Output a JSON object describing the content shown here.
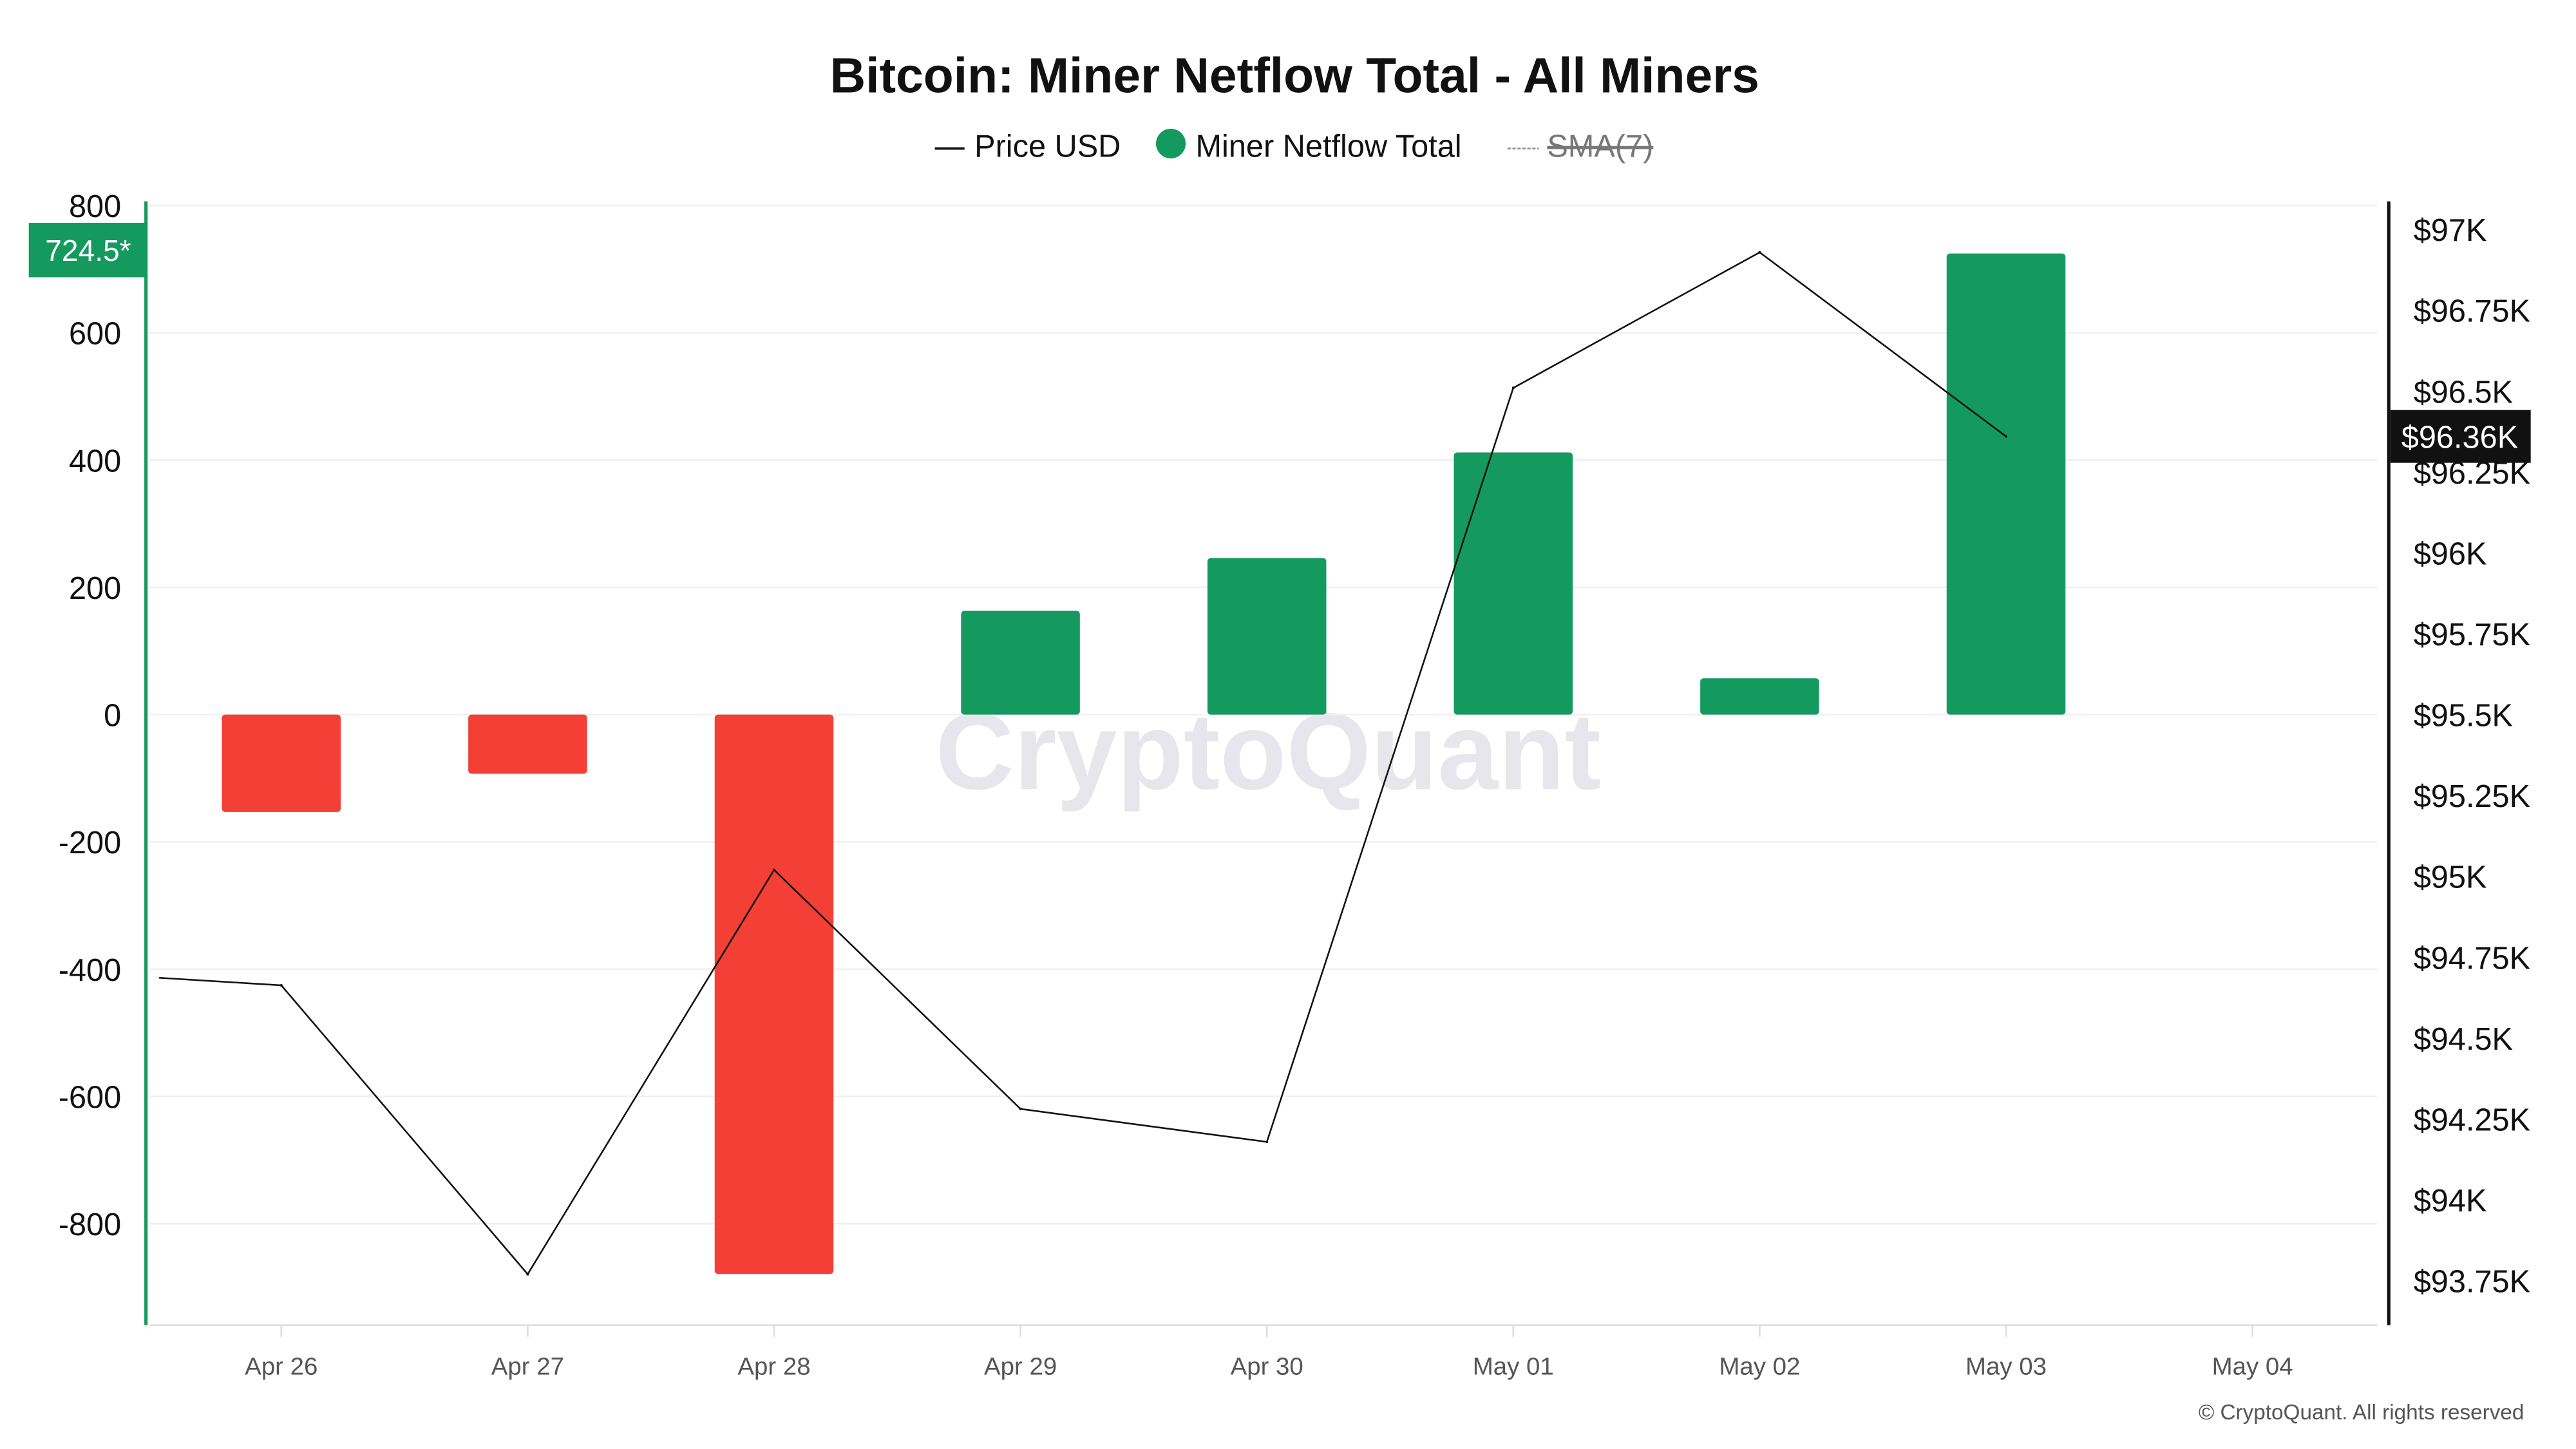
{
  "chart_data": {
    "type": "bar",
    "title": "Bitcoin: Miner Netflow Total - All Miners",
    "legend": [
      {
        "label": "Price USD",
        "marker": "line",
        "active": true
      },
      {
        "label": "Miner Netflow Total",
        "marker": "dot",
        "active": true
      },
      {
        "label": "SMA(7)",
        "marker": "dashed-line",
        "active": false
      }
    ],
    "legend_placement": "top-center",
    "categories": [
      "Apr 26",
      "Apr 27",
      "Apr 28",
      "Apr 29",
      "Apr 30",
      "May 01",
      "May 02",
      "May 03",
      "May 04"
    ],
    "series": [
      {
        "name": "Miner Netflow Total",
        "type": "bar",
        "axis": "left",
        "values": [
          -153,
          -93,
          -879,
          163,
          246,
          412,
          57,
          724.5,
          null
        ]
      },
      {
        "name": "Price USD",
        "type": "line",
        "axis": "right",
        "values": [
          94663,
          93770,
          95020,
          94281,
          94179,
          96510,
          96929,
          96360,
          null
        ],
        "leading_value": 94710
      }
    ],
    "left_axis": {
      "ylim": [
        -960,
        800
      ],
      "ticks": [
        "800",
        "600",
        "400",
        "200",
        "0",
        "-200",
        "-400",
        "-600",
        "-800"
      ],
      "tick_values": [
        800,
        600,
        400,
        200,
        0,
        -200,
        -400,
        -600,
        -800
      ],
      "current_label": "724.5*",
      "current_value": 724.5
    },
    "right_axis": {
      "ticks": [
        "$97K",
        "$96.75K",
        "$96.5K",
        "$96.25K",
        "$96K",
        "$95.75K",
        "$95.5K",
        "$95.25K",
        "$95K",
        "$94.75K",
        "$94.5K",
        "$94.25K",
        "$94K",
        "$93.75K"
      ],
      "tick_values": [
        97000,
        96750,
        96500,
        96250,
        96000,
        95750,
        95500,
        95250,
        95000,
        94750,
        94500,
        94250,
        94000,
        93750
      ],
      "current_label": "$96.36K",
      "current_value": 96360
    },
    "grid": true,
    "colors": {
      "positive": "#149a5f",
      "negative": "#f33f35",
      "price": "#111111",
      "sma": "#777777",
      "left_axis": "#149a5f",
      "right_axis": "#111111"
    },
    "watermark": "CryptoQuant",
    "footer": "© CryptoQuant. All rights reserved"
  }
}
